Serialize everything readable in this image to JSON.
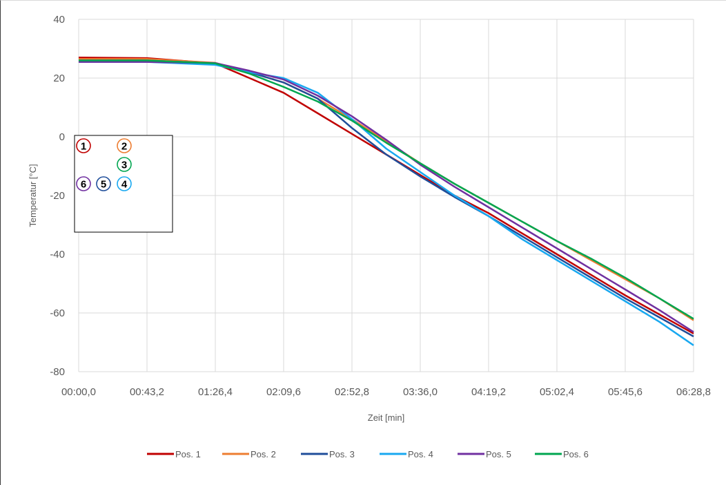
{
  "chart_data": {
    "type": "line",
    "xlabel": "Zeit [min]",
    "ylabel": "Temperatur [°C]",
    "ylim": [
      -80,
      40
    ],
    "yticks": [
      40,
      20,
      0,
      -20,
      -40,
      -60,
      -80
    ],
    "xlim": [
      0,
      388.8
    ],
    "xtick_labels": [
      "00:00,0",
      "00:43,2",
      "01:26,4",
      "02:09,6",
      "02:52,8",
      "03:36,0",
      "04:19,2",
      "05:02,4",
      "05:45,6",
      "06:28,8"
    ],
    "grid": true,
    "legend_position": "bottom",
    "x_seconds": [
      0,
      43.2,
      86.4,
      108,
      129.6,
      151.2,
      172.8,
      194.4,
      216,
      237.6,
      259.2,
      280.8,
      302.4,
      324,
      345.6,
      367.2,
      388.8
    ],
    "series": [
      {
        "name": "Pos. 1",
        "color": "#C00000",
        "values": [
          27,
          26.8,
          25,
          20,
          15,
          8,
          1,
          -6,
          -13,
          -20,
          -26,
          -33,
          -40,
          -47,
          -54,
          -60.5,
          -67
        ]
      },
      {
        "name": "Pos. 2",
        "color": "#ED7D31",
        "values": [
          26.5,
          26.5,
          25.2,
          22,
          18.5,
          13,
          6,
          -1.5,
          -9,
          -16,
          -22.5,
          -29,
          -35.5,
          -42,
          -48.5,
          -55,
          -62.5
        ]
      },
      {
        "name": "Pos. 3",
        "color": "#1F4E9A",
        "values": [
          26,
          26,
          25,
          22,
          18.5,
          13,
          3,
          -6,
          -13.5,
          -20.5,
          -27,
          -34,
          -41,
          -48,
          -55,
          -61.5,
          -68
        ]
      },
      {
        "name": "Pos. 4",
        "color": "#18A8F0",
        "values": [
          25.5,
          25.5,
          24.5,
          22,
          20,
          15,
          6,
          -4,
          -12,
          -20,
          -27,
          -35,
          -42,
          -49,
          -56,
          -63,
          -71
        ]
      },
      {
        "name": "Pos. 5",
        "color": "#7030A0",
        "values": [
          25.5,
          25.5,
          25.1,
          22.5,
          19.5,
          14,
          7,
          -1,
          -9.5,
          -17,
          -24,
          -31,
          -38,
          -45,
          -52,
          -59,
          -66.5
        ]
      },
      {
        "name": "Pos. 6",
        "color": "#00A650",
        "values": [
          26,
          26,
          25,
          21.5,
          17,
          12,
          5.5,
          -2,
          -9,
          -16,
          -22.5,
          -29,
          -35.5,
          -41.5,
          -48,
          -55,
          -62
        ]
      }
    ],
    "inset_markers": [
      {
        "label": "1",
        "color": "#C00000"
      },
      {
        "label": "2",
        "color": "#ED7D31"
      },
      {
        "label": "3",
        "color": "#00A650"
      },
      {
        "label": "6",
        "color": "#7030A0"
      },
      {
        "label": "5",
        "color": "#1F4E9A"
      },
      {
        "label": "4",
        "color": "#18A8F0"
      }
    ]
  }
}
